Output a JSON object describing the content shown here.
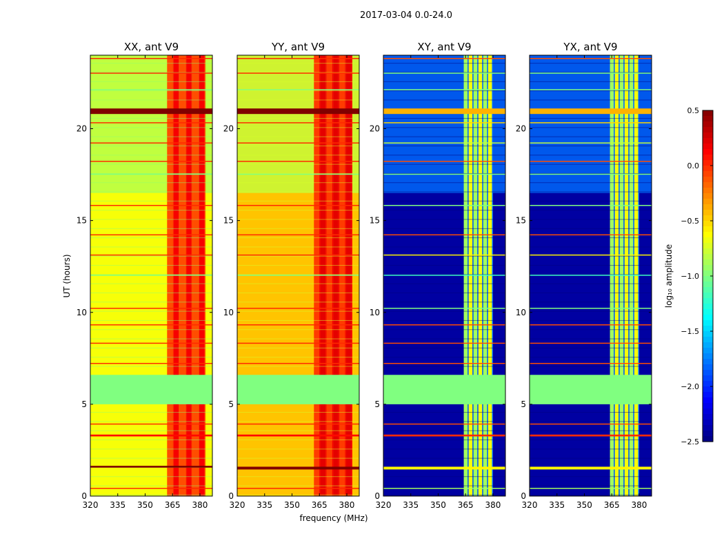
{
  "chart_data": {
    "type": "heatmap",
    "suptitle": "2017-03-04 0.0-24.0",
    "xlabel": "frequency (MHz)",
    "ylabel": "UT (hours)",
    "xlim": [
      320,
      386.8
    ],
    "ylim": [
      0,
      24
    ],
    "xticks": [
      "320",
      "335",
      "350",
      "365",
      "380"
    ],
    "yticks": [
      "0",
      "5",
      "10",
      "15",
      "20"
    ],
    "colorbar": {
      "label": "log₁₀ amplitude",
      "range": [
        -2.5,
        0.5
      ],
      "ticks": [
        "0.5",
        "0.0",
        "−0.5",
        "−1.0",
        "−1.5",
        "−2.0",
        "−2.5"
      ],
      "colormap": "jet"
    },
    "panels": [
      {
        "title": "XX, ant V9",
        "background": -0.65,
        "upper_background": -0.85,
        "rfi_band": [
          362,
          383
        ],
        "rfi_value": 0.0,
        "gap": [
          5.0,
          6.6
        ],
        "gap_value": -1.0,
        "lines": [
          [
            1.55,
            1.65,
            0.5
          ],
          [
            20.8,
            21.1,
            0.5
          ],
          [
            3.25,
            3.35,
            0.1
          ],
          [
            0.4,
            0.45,
            0.0
          ],
          [
            3.9,
            3.95,
            0.0
          ],
          [
            7.2,
            7.25,
            0.0
          ],
          [
            8.3,
            8.35,
            0.0
          ],
          [
            9.3,
            9.35,
            0.0
          ],
          [
            10.2,
            10.25,
            0.0
          ],
          [
            13.1,
            13.15,
            0.0
          ],
          [
            14.2,
            14.25,
            0.0
          ],
          [
            15.8,
            15.85,
            0.0
          ],
          [
            18.2,
            18.25,
            0.0
          ],
          [
            19.2,
            19.25,
            0.0
          ],
          [
            20.3,
            20.35,
            0.0
          ],
          [
            23.0,
            23.05,
            0.0
          ],
          [
            23.8,
            23.85,
            0.0
          ],
          [
            17.5,
            17.55,
            -1.0
          ],
          [
            12.0,
            12.05,
            -1.0
          ],
          [
            22.1,
            22.15,
            -1.0
          ]
        ]
      },
      {
        "title": "YY, ant V9",
        "background": -0.45,
        "upper_background": -0.8,
        "rfi_band": [
          362,
          383
        ],
        "rfi_value": 0.05,
        "gap": [
          5.0,
          6.6
        ],
        "gap_value": -1.0,
        "lines": [
          [
            1.45,
            1.6,
            0.5
          ],
          [
            20.8,
            21.1,
            0.5
          ],
          [
            3.25,
            3.35,
            0.1
          ],
          [
            0.4,
            0.45,
            0.0
          ],
          [
            3.9,
            3.95,
            0.0
          ],
          [
            7.2,
            7.25,
            0.0
          ],
          [
            8.3,
            8.35,
            0.0
          ],
          [
            9.3,
            9.35,
            0.0
          ],
          [
            10.2,
            10.25,
            0.0
          ],
          [
            13.1,
            13.15,
            0.0
          ],
          [
            14.2,
            14.25,
            0.0
          ],
          [
            15.8,
            15.85,
            0.0
          ],
          [
            18.2,
            18.25,
            0.0
          ],
          [
            19.2,
            19.25,
            0.0
          ],
          [
            20.3,
            20.35,
            0.0
          ],
          [
            23.0,
            23.05,
            0.0
          ],
          [
            23.8,
            23.85,
            0.0
          ],
          [
            17.5,
            17.55,
            -1.0
          ],
          [
            12.0,
            12.05,
            -1.0
          ],
          [
            22.1,
            22.15,
            -1.0
          ]
        ]
      },
      {
        "title": "XY, ant V9",
        "background": -2.4,
        "upper_background": -1.8,
        "rfi_band": [
          364,
          380
        ],
        "rfi_value": -0.8,
        "gap": [
          5.0,
          6.6
        ],
        "gap_value": -1.0,
        "lines": [
          [
            1.45,
            1.6,
            -0.6
          ],
          [
            20.8,
            21.1,
            -0.4
          ],
          [
            3.25,
            3.35,
            0.0
          ],
          [
            0.4,
            0.45,
            -0.9
          ],
          [
            3.9,
            3.95,
            -0.1
          ],
          [
            7.2,
            7.25,
            -0.1
          ],
          [
            8.3,
            8.35,
            -0.1
          ],
          [
            9.3,
            9.35,
            -0.1
          ],
          [
            10.2,
            10.25,
            -1.0
          ],
          [
            13.1,
            13.15,
            -0.6
          ],
          [
            14.2,
            14.25,
            -0.1
          ],
          [
            15.8,
            15.85,
            -1.0
          ],
          [
            18.2,
            18.25,
            -0.1
          ],
          [
            19.2,
            19.25,
            -0.8
          ],
          [
            20.3,
            20.35,
            -0.5
          ],
          [
            23.0,
            23.05,
            -1.0
          ],
          [
            23.8,
            23.85,
            -0.1
          ],
          [
            17.5,
            17.55,
            -1.0
          ],
          [
            12.0,
            12.05,
            -1.2
          ],
          [
            22.1,
            22.15,
            -1.0
          ]
        ]
      },
      {
        "title": "YX, ant V9",
        "background": -2.4,
        "upper_background": -1.8,
        "rfi_band": [
          364,
          380
        ],
        "rfi_value": -0.8,
        "gap": [
          5.0,
          6.6
        ],
        "gap_value": -1.0,
        "lines": [
          [
            1.45,
            1.6,
            -0.6
          ],
          [
            20.8,
            21.1,
            -0.4
          ],
          [
            3.25,
            3.35,
            0.0
          ],
          [
            0.4,
            0.45,
            -0.9
          ],
          [
            3.9,
            3.95,
            -0.1
          ],
          [
            7.2,
            7.25,
            -0.1
          ],
          [
            8.3,
            8.35,
            -0.1
          ],
          [
            9.3,
            9.35,
            -0.1
          ],
          [
            10.2,
            10.25,
            -1.0
          ],
          [
            13.1,
            13.15,
            -0.6
          ],
          [
            14.2,
            14.25,
            -0.1
          ],
          [
            15.8,
            15.85,
            -1.0
          ],
          [
            18.2,
            18.25,
            -0.1
          ],
          [
            19.2,
            19.25,
            -0.8
          ],
          [
            20.3,
            20.35,
            -0.5
          ],
          [
            23.0,
            23.05,
            -1.0
          ],
          [
            23.8,
            23.85,
            -0.1
          ],
          [
            17.5,
            17.55,
            -1.0
          ],
          [
            12.0,
            12.05,
            -1.2
          ],
          [
            22.1,
            22.15,
            -1.0
          ]
        ]
      }
    ]
  }
}
